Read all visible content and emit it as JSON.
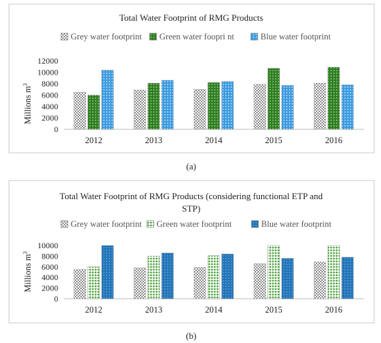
{
  "colors": {
    "grey": "#888888",
    "green": "#3e8e2c",
    "blue": "#2f8fd0",
    "frame": "#c8c8c8",
    "grid": "#d9d9d9"
  },
  "chart_data": [
    {
      "type": "bar",
      "title_lines": [
        "Total Water Footprint of RMG Products"
      ],
      "ylabel": "Millions m",
      "ylabel_sup": "3",
      "categories": [
        "2012",
        "2013",
        "2014",
        "2015",
        "2016"
      ],
      "yticks": [
        "0",
        "2000",
        "4000",
        "6000",
        "8000",
        "10000",
        "12000"
      ],
      "ylim": [
        0,
        12000
      ],
      "grid": false,
      "legend_position": "top",
      "series": [
        {
          "name": "Grey water footprint",
          "color_key": "grey",
          "values": [
            6500,
            6900,
            7000,
            7900,
            8100
          ]
        },
        {
          "name": "Green water foopri nt",
          "color_key": "green",
          "values": [
            6000,
            8100,
            8200,
            10700,
            10900
          ]
        },
        {
          "name": "Blue water footprint",
          "color_key": "blue",
          "values": [
            10400,
            8600,
            8400,
            7700,
            7800
          ]
        }
      ],
      "caption": "(a)"
    },
    {
      "type": "bar",
      "title_lines": [
        "Total Water Footprint of RMG Products (considering functional ETP and",
        "STP)"
      ],
      "ylabel": "Millions m",
      "ylabel_sup": "3",
      "categories": [
        "2012",
        "2013",
        "2014",
        "2015",
        "2016"
      ],
      "yticks": [
        "0",
        "2000",
        "4000",
        "6000",
        "8000",
        "10000"
      ],
      "ylim": [
        0,
        10000
      ],
      "grid": false,
      "legend_position": "top",
      "series": [
        {
          "name": "Grey water footprint",
          "color_key": "grey",
          "values": [
            5500,
            5800,
            5900,
            6600,
            6900
          ]
        },
        {
          "name": "Green water footprint",
          "color_key": "green",
          "values": [
            6000,
            8000,
            8100,
            10000,
            10000
          ]
        },
        {
          "name": "Blue water footprint",
          "color_key": "blue",
          "values": [
            10000,
            8600,
            8400,
            7600,
            7800
          ]
        }
      ],
      "caption": "(b)"
    }
  ]
}
